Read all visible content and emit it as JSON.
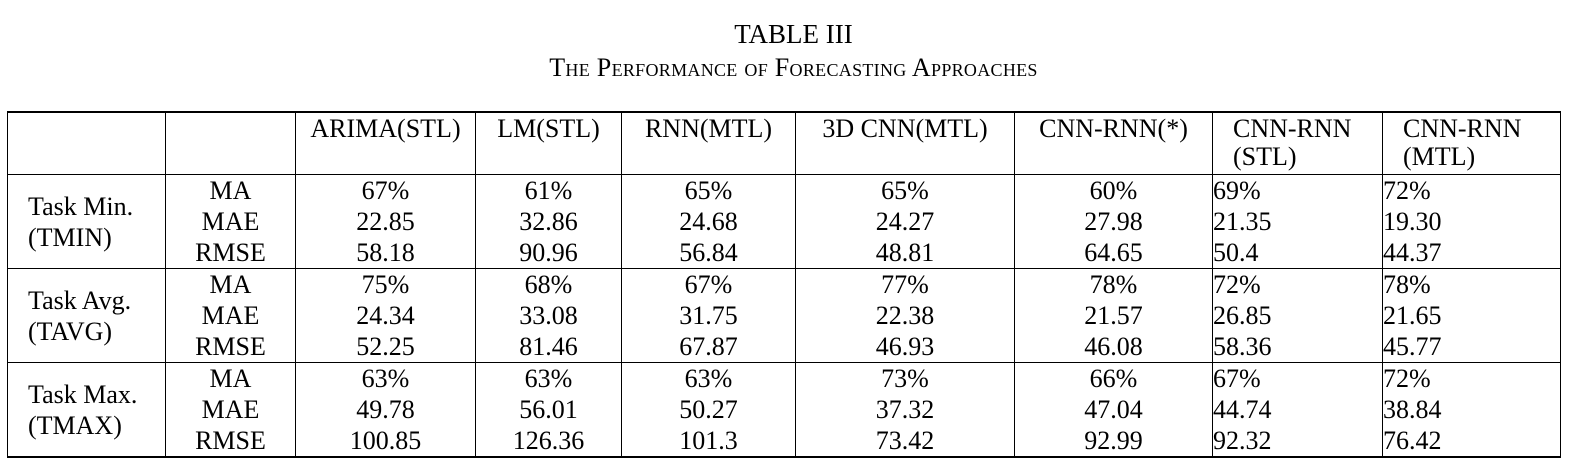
{
  "caption": {
    "label": "TABLE III",
    "title": "The Performance of Forecasting Approaches"
  },
  "table": {
    "columns": [
      "ARIMA(STL)",
      "LM(STL)",
      "RNN(MTL)",
      "3D CNN(MTL)",
      "CNN-RNN(*)",
      "CNN-RNN (STL)",
      "CNN-RNN (MTL)"
    ],
    "groups": [
      {
        "task": "Task Min.",
        "code": "(TMIN)",
        "rows": [
          {
            "metric": "MA",
            "values": [
              "67%",
              "61%",
              "65%",
              "65%",
              "60%",
              "69%",
              "72%"
            ],
            "bold": [
              false,
              false,
              false,
              false,
              false,
              false,
              true
            ]
          },
          {
            "metric": "MAE",
            "values": [
              "22.85",
              "32.86",
              "24.68",
              "24.27",
              "27.98",
              "21.35",
              "19.30"
            ],
            "bold": [
              false,
              false,
              false,
              false,
              false,
              false,
              false
            ]
          },
          {
            "metric": "RMSE",
            "values": [
              "58.18",
              "90.96",
              "56.84",
              "48.81",
              "64.65",
              "50.4",
              "44.37"
            ],
            "bold": [
              false,
              false,
              false,
              false,
              false,
              false,
              false
            ]
          }
        ]
      },
      {
        "task": "Task Avg.",
        "code": "(TAVG)",
        "rows": [
          {
            "metric": "MA",
            "values": [
              "75%",
              "68%",
              "67%",
              "77%",
              "78%",
              "72%",
              "78%"
            ],
            "bold": [
              false,
              false,
              false,
              false,
              true,
              false,
              true
            ]
          },
          {
            "metric": "MAE",
            "values": [
              "24.34",
              "33.08",
              "31.75",
              "22.38",
              "21.57",
              "26.85",
              "21.65"
            ],
            "bold": [
              false,
              false,
              false,
              false,
              false,
              false,
              false
            ]
          },
          {
            "metric": "RMSE",
            "values": [
              "52.25",
              "81.46",
              "67.87",
              "46.93",
              "46.08",
              "58.36",
              "45.77"
            ],
            "bold": [
              false,
              false,
              false,
              false,
              false,
              false,
              false
            ]
          }
        ]
      },
      {
        "task": "Task Max.",
        "code": "(TMAX)",
        "rows": [
          {
            "metric": "MA",
            "values": [
              "63%",
              "63%",
              "63%",
              "73%",
              "66%",
              "67%",
              "72%"
            ],
            "bold": [
              false,
              false,
              false,
              true,
              false,
              false,
              false
            ]
          },
          {
            "metric": "MAE",
            "values": [
              "49.78",
              "56.01",
              "50.27",
              "37.32",
              "47.04",
              "44.74",
              "38.84"
            ],
            "bold": [
              false,
              false,
              false,
              false,
              false,
              false,
              false
            ]
          },
          {
            "metric": "RMSE",
            "values": [
              "100.85",
              "126.36",
              "101.3",
              "73.42",
              "92.99",
              "92.32",
              "76.42"
            ],
            "bold": [
              false,
              false,
              false,
              false,
              false,
              false,
              false
            ]
          }
        ]
      }
    ]
  }
}
